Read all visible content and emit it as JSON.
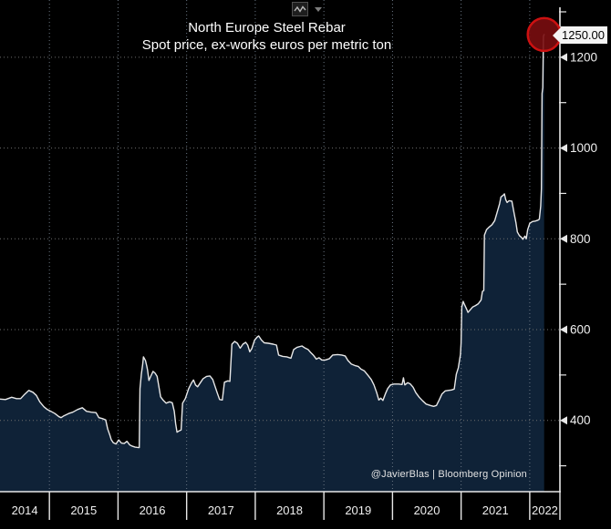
{
  "toolbar": {
    "icons": [
      "line-chart-icon",
      "caret-down-icon"
    ]
  },
  "chart_data": {
    "type": "area",
    "title": "North Europe Steel Rebar",
    "subtitle": "Spot price, ex-works euros per metric ton",
    "source_note": "@JavierBlas | Bloomberg Opinion",
    "legend_position": "none",
    "grid": "dotted",
    "x_axis": {
      "visible_range": [
        2014.28,
        2022.44
      ],
      "tick_years": [
        2015,
        2016,
        2017,
        2018,
        2019,
        2020,
        2021,
        2022
      ],
      "labels": [
        "2014",
        "2015",
        "2016",
        "2017",
        "2018",
        "2019",
        "2020",
        "2021",
        "2022"
      ]
    },
    "y_axis": {
      "side": "right",
      "visible_range": [
        243,
        1310
      ],
      "major_ticks": [
        400,
        600,
        800,
        1000,
        1200
      ],
      "minor_ticks": [
        300,
        500,
        700,
        900,
        1100,
        1300
      ],
      "gridlines_on_major": true
    },
    "series": [
      {
        "name": "Spot price, ex-works",
        "unit": "euros per metric ton",
        "points": [
          [
            2014.28,
            447
          ],
          [
            2014.36,
            446
          ],
          [
            2014.45,
            451
          ],
          [
            2014.52,
            448
          ],
          [
            2014.58,
            448
          ],
          [
            2014.63,
            456
          ],
          [
            2014.7,
            466
          ],
          [
            2014.76,
            462
          ],
          [
            2014.81,
            455
          ],
          [
            2014.86,
            441
          ],
          [
            2014.92,
            430
          ],
          [
            2014.97,
            424
          ],
          [
            2015.02,
            420
          ],
          [
            2015.08,
            415
          ],
          [
            2015.14,
            408
          ],
          [
            2015.17,
            406
          ],
          [
            2015.21,
            410
          ],
          [
            2015.28,
            415
          ],
          [
            2015.34,
            418
          ],
          [
            2015.41,
            424
          ],
          [
            2015.48,
            428
          ],
          [
            2015.54,
            420
          ],
          [
            2015.61,
            418
          ],
          [
            2015.68,
            417
          ],
          [
            2015.72,
            406
          ],
          [
            2015.77,
            404
          ],
          [
            2015.82,
            401
          ],
          [
            2015.85,
            381
          ],
          [
            2015.88,
            368
          ],
          [
            2015.9,
            358
          ],
          [
            2015.93,
            351
          ],
          [
            2015.97,
            348
          ],
          [
            2016.01,
            357
          ],
          [
            2016.05,
            350
          ],
          [
            2016.09,
            349
          ],
          [
            2016.13,
            354
          ],
          [
            2016.17,
            346
          ],
          [
            2016.21,
            343
          ],
          [
            2016.25,
            341
          ],
          [
            2016.3,
            340
          ],
          [
            2016.31,
            340
          ],
          [
            2016.32,
            470
          ],
          [
            2016.34,
            502
          ],
          [
            2016.36,
            524
          ],
          [
            2016.37,
            540
          ],
          [
            2016.4,
            532
          ],
          [
            2016.42,
            519
          ],
          [
            2016.43,
            511
          ],
          [
            2016.45,
            488
          ],
          [
            2016.48,
            498
          ],
          [
            2016.51,
            508
          ],
          [
            2016.54,
            504
          ],
          [
            2016.57,
            497
          ],
          [
            2016.6,
            470
          ],
          [
            2016.62,
            452
          ],
          [
            2016.66,
            444
          ],
          [
            2016.7,
            438
          ],
          [
            2016.75,
            441
          ],
          [
            2016.79,
            439
          ],
          [
            2016.82,
            420
          ],
          [
            2016.84,
            393
          ],
          [
            2016.86,
            374
          ],
          [
            2016.89,
            377
          ],
          [
            2016.92,
            379
          ],
          [
            2016.94,
            438
          ],
          [
            2016.98,
            448
          ],
          [
            2017.03,
            470
          ],
          [
            2017.07,
            482
          ],
          [
            2017.1,
            489
          ],
          [
            2017.13,
            478
          ],
          [
            2017.16,
            474
          ],
          [
            2017.2,
            483
          ],
          [
            2017.24,
            492
          ],
          [
            2017.29,
            497
          ],
          [
            2017.34,
            498
          ],
          [
            2017.38,
            490
          ],
          [
            2017.42,
            472
          ],
          [
            2017.45,
            459
          ],
          [
            2017.48,
            446
          ],
          [
            2017.52,
            445
          ],
          [
            2017.55,
            484
          ],
          [
            2017.6,
            487
          ],
          [
            2017.63,
            486
          ],
          [
            2017.66,
            568
          ],
          [
            2017.7,
            574
          ],
          [
            2017.74,
            570
          ],
          [
            2017.78,
            559
          ],
          [
            2017.82,
            568
          ],
          [
            2017.86,
            572
          ],
          [
            2017.89,
            566
          ],
          [
            2017.92,
            551
          ],
          [
            2017.95,
            558
          ],
          [
            2017.99,
            577
          ],
          [
            2018.03,
            584
          ],
          [
            2018.05,
            586
          ],
          [
            2018.09,
            577
          ],
          [
            2018.13,
            571
          ],
          [
            2018.19,
            570
          ],
          [
            2018.26,
            568
          ],
          [
            2018.31,
            566
          ],
          [
            2018.34,
            544
          ],
          [
            2018.4,
            541
          ],
          [
            2018.46,
            540
          ],
          [
            2018.52,
            537
          ],
          [
            2018.56,
            556
          ],
          [
            2018.61,
            561
          ],
          [
            2018.68,
            564
          ],
          [
            2018.73,
            559
          ],
          [
            2018.77,
            556
          ],
          [
            2018.81,
            549
          ],
          [
            2018.85,
            543
          ],
          [
            2018.89,
            535
          ],
          [
            2018.93,
            538
          ],
          [
            2018.97,
            533
          ],
          [
            2019.02,
            533
          ],
          [
            2019.08,
            536
          ],
          [
            2019.13,
            544
          ],
          [
            2019.2,
            545
          ],
          [
            2019.26,
            544
          ],
          [
            2019.31,
            542
          ],
          [
            2019.35,
            532
          ],
          [
            2019.4,
            524
          ],
          [
            2019.45,
            521
          ],
          [
            2019.5,
            519
          ],
          [
            2019.54,
            513
          ],
          [
            2019.59,
            509
          ],
          [
            2019.64,
            500
          ],
          [
            2019.69,
            490
          ],
          [
            2019.73,
            478
          ],
          [
            2019.77,
            461
          ],
          [
            2019.8,
            445
          ],
          [
            2019.83,
            449
          ],
          [
            2019.86,
            444
          ],
          [
            2019.9,
            460
          ],
          [
            2019.93,
            470
          ],
          [
            2019.97,
            478
          ],
          [
            2020.02,
            480
          ],
          [
            2020.09,
            480
          ],
          [
            2020.14,
            479
          ],
          [
            2020.16,
            494
          ],
          [
            2020.18,
            478
          ],
          [
            2020.22,
            483
          ],
          [
            2020.26,
            480
          ],
          [
            2020.3,
            473
          ],
          [
            2020.34,
            461
          ],
          [
            2020.39,
            451
          ],
          [
            2020.44,
            443
          ],
          [
            2020.49,
            436
          ],
          [
            2020.55,
            433
          ],
          [
            2020.6,
            431
          ],
          [
            2020.64,
            433
          ],
          [
            2020.68,
            445
          ],
          [
            2020.72,
            458
          ],
          [
            2020.77,
            465
          ],
          [
            2020.81,
            466
          ],
          [
            2020.86,
            467
          ],
          [
            2020.9,
            469
          ],
          [
            2020.93,
            502
          ],
          [
            2020.96,
            516
          ],
          [
            2020.99,
            545
          ],
          [
            2021.0,
            570
          ],
          [
            2021.01,
            650
          ],
          [
            2021.03,
            662
          ],
          [
            2021.05,
            655
          ],
          [
            2021.08,
            645
          ],
          [
            2021.1,
            638
          ],
          [
            2021.13,
            643
          ],
          [
            2021.17,
            650
          ],
          [
            2021.21,
            653
          ],
          [
            2021.25,
            657
          ],
          [
            2021.29,
            665
          ],
          [
            2021.31,
            684
          ],
          [
            2021.33,
            686
          ],
          [
            2021.34,
            808
          ],
          [
            2021.37,
            820
          ],
          [
            2021.41,
            826
          ],
          [
            2021.45,
            831
          ],
          [
            2021.49,
            840
          ],
          [
            2021.53,
            861
          ],
          [
            2021.56,
            877
          ],
          [
            2021.58,
            892
          ],
          [
            2021.62,
            897
          ],
          [
            2021.63,
            899
          ],
          [
            2021.65,
            886
          ],
          [
            2021.67,
            880
          ],
          [
            2021.7,
            884
          ],
          [
            2021.74,
            883
          ],
          [
            2021.77,
            858
          ],
          [
            2021.8,
            835
          ],
          [
            2021.82,
            815
          ],
          [
            2021.85,
            807
          ],
          [
            2021.88,
            803
          ],
          [
            2021.9,
            799
          ],
          [
            2021.93,
            806
          ],
          [
            2021.95,
            800
          ],
          [
            2021.97,
            820
          ],
          [
            2022.0,
            834
          ],
          [
            2022.04,
            838
          ],
          [
            2022.08,
            839
          ],
          [
            2022.12,
            841
          ],
          [
            2022.14,
            843
          ],
          [
            2022.16,
            872
          ],
          [
            2022.17,
            910
          ],
          [
            2022.18,
            1120
          ],
          [
            2022.19,
            1133
          ],
          [
            2022.2,
            1246
          ],
          [
            2022.21,
            1250
          ]
        ]
      }
    ],
    "last_point": {
      "x": 2022.21,
      "value": 1250,
      "label": "1250.00",
      "marker": "red-circle"
    },
    "colors": {
      "background": "#000000",
      "area_fill": "#0f2237",
      "line": "#e8e8e8",
      "grid_horizontal": "#6e6e6e",
      "grid_vertical": "#6a7683",
      "axis": "#e8e8e8",
      "tick_text": "#f0f0f0",
      "marker_fill": "#7a0d10",
      "marker_stroke": "#cc1111",
      "callout_bg": "#f4f4f4",
      "callout_text": "#000000"
    }
  }
}
